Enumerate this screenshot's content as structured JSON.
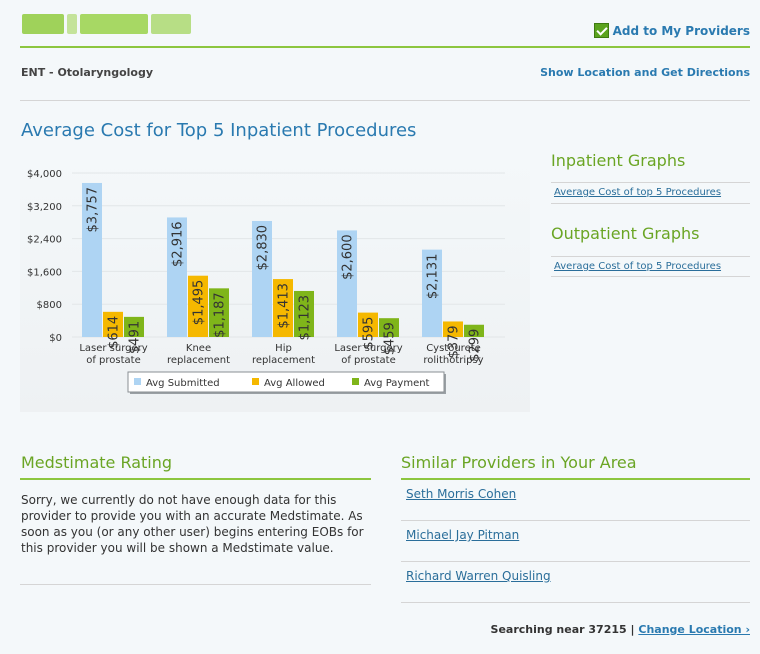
{
  "header": {
    "add_providers_label": "Add to My Providers",
    "specialty": "ENT - Otolaryngology",
    "directions_label": "Show Location and Get Directions"
  },
  "chart_section": {
    "title": "Average Cost for Top 5 Inpatient Procedures"
  },
  "chart_data": {
    "type": "bar",
    "categories": [
      [
        "Laser surgery",
        "of prostate"
      ],
      [
        "Knee",
        "replacement"
      ],
      [
        "Hip",
        "replacement"
      ],
      [
        "Laser surgery",
        "of prostate"
      ],
      [
        "Cystourete",
        "rolithotripsy"
      ]
    ],
    "series": [
      {
        "name": "Avg Submitted",
        "color": "#aed4f3",
        "values": [
          3757,
          2916,
          2830,
          2600,
          2131
        ],
        "labels": [
          "$3,757",
          "$2,916",
          "$2,830",
          "$2,600",
          "$2,131"
        ]
      },
      {
        "name": "Avg Allowed",
        "color": "#f5b800",
        "values": [
          614,
          1495,
          1413,
          595,
          379
        ],
        "labels": [
          "$614",
          "$1,495",
          "$1,413",
          "$595",
          "$379"
        ]
      },
      {
        "name": "Avg Payment",
        "color": "#7fb51a",
        "values": [
          491,
          1187,
          1123,
          459,
          299
        ],
        "labels": [
          "$491",
          "$1,187",
          "$1,123",
          "$459",
          "$299"
        ]
      }
    ],
    "ylim": [
      0,
      4000
    ],
    "yticks": [
      0,
      800,
      1600,
      2400,
      3200,
      4000
    ],
    "ytick_labels": [
      "$0",
      "$800",
      "$1,600",
      "$2,400",
      "$3,200",
      "$4,000"
    ],
    "legend_position": "bottom",
    "grid": true
  },
  "sidebar": {
    "inpatient_title": "Inpatient Graphs",
    "inpatient_link": "Average Cost of top 5 Procedures",
    "outpatient_title": "Outpatient Graphs",
    "outpatient_link": "Average Cost of top 5 Procedures"
  },
  "rating": {
    "title": "Medstimate Rating",
    "text": "Sorry, we currently do not have enough data for this provider to provide you with an accurate Medstimate. As soon as you (or any other user) begins entering EOBs for this provider you will be shown a Medstimate value."
  },
  "similar": {
    "title": "Similar Providers in Your Area",
    "providers": [
      "Seth Morris Cohen",
      "Michael Jay Pitman",
      "Richard Warren Quisling"
    ]
  },
  "footer": {
    "searching_label": "Searching near 37215 |",
    "change_location_label": "Change Location ›"
  },
  "colors": {
    "accent_green": "#8cc63f",
    "link_blue": "#2a7ab0"
  }
}
